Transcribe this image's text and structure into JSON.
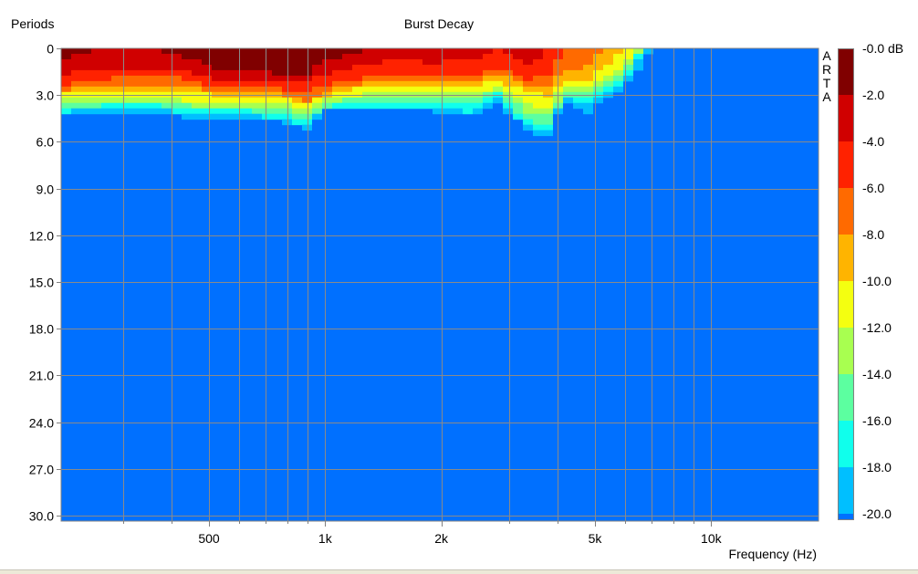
{
  "chart_data": {
    "type": "heatmap",
    "title": "Burst Decay",
    "ylabel": "Periods",
    "xlabel": "Frequency (Hz)",
    "watermark": "ARTA",
    "x_scale": "log",
    "xlim": [
      207,
      19000
    ],
    "ylim": [
      0,
      30.4
    ],
    "y_ticks": [
      0,
      3,
      6,
      9,
      12,
      15,
      18,
      21,
      24,
      27,
      30
    ],
    "y_tick_labels": [
      "0",
      "3.0",
      "6.0",
      "9.0",
      "12.0",
      "15.0",
      "18.0",
      "21.0",
      "24.0",
      "27.0",
      "30.0"
    ],
    "x_ticks": [
      500,
      1000,
      2000,
      5000,
      10000
    ],
    "x_tick_labels": [
      "500",
      "1k",
      "2k",
      "5k",
      "10k"
    ],
    "x_grid": [
      300,
      400,
      500,
      600,
      700,
      800,
      900,
      1000,
      2000,
      3000,
      4000,
      5000,
      6000,
      7000,
      8000,
      9000,
      10000
    ],
    "grid": true,
    "colorbar": {
      "labels": [
        "-0.0 dB",
        "-2.0",
        "-4.0",
        "-6.0",
        "-8.0",
        "-10.0",
        "-12.0",
        "-14.0",
        "-16.0",
        "-18.0",
        "-20.0"
      ],
      "band_colors": [
        "#800000",
        "#D00000",
        "#FF2200",
        "#FF6A00",
        "#FFB400",
        "#F4FF10",
        "#A8FF50",
        "#5CFFA0",
        "#10FFEC",
        "#00BFFF"
      ],
      "floor_color": "#0070FF"
    },
    "decay": [
      {
        "f": 205,
        "b": [
          0.7,
          1.65,
          2.35,
          2.7,
          2.95,
          3.3,
          3.6,
          3.9,
          4.1,
          4.4
        ]
      },
      {
        "f": 250,
        "b": [
          0.05,
          1.4,
          2.05,
          2.35,
          2.7,
          3.0,
          3.4,
          3.7,
          3.9,
          4.1
        ]
      },
      {
        "f": 340,
        "b": [
          0.02,
          1.4,
          1.75,
          2.35,
          2.65,
          3.0,
          3.35,
          3.6,
          3.85,
          4.1
        ]
      },
      {
        "f": 425,
        "b": [
          0.45,
          1.27,
          1.95,
          2.45,
          2.7,
          3.3,
          3.6,
          3.8,
          4.1,
          4.4
        ]
      },
      {
        "f": 530,
        "b": [
          1.37,
          2.05,
          2.45,
          2.8,
          3.1,
          3.5,
          3.8,
          4.0,
          4.3,
          4.7
        ]
      },
      {
        "f": 625,
        "b": [
          1.37,
          2.05,
          2.35,
          2.8,
          3.1,
          3.4,
          3.7,
          4.0,
          4.3,
          4.5
        ]
      },
      {
        "f": 780,
        "b": [
          1.66,
          2.2,
          2.65,
          3.0,
          3.2,
          3.6,
          3.9,
          4.3,
          4.5,
          4.7
        ]
      },
      {
        "f": 890,
        "b": [
          1.66,
          2.15,
          2.8,
          3.4,
          3.7,
          4.0,
          4.4,
          4.7,
          5.0,
          5.3
        ]
      },
      {
        "f": 1000,
        "b": [
          0.88,
          1.66,
          2.35,
          2.7,
          3.0,
          3.3,
          3.5,
          3.7,
          3.9,
          4.0
        ]
      },
      {
        "f": 1270,
        "b": [
          0.02,
          0.98,
          1.85,
          2.2,
          2.5,
          2.9,
          3.1,
          3.4,
          3.7,
          3.9
        ]
      },
      {
        "f": 1620,
        "b": [
          0.01,
          0.7,
          1.85,
          2.15,
          2.35,
          2.8,
          3.1,
          3.4,
          3.7,
          3.9
        ]
      },
      {
        "f": 1860,
        "b": [
          0.01,
          0.98,
          1.66,
          2.05,
          2.45,
          2.8,
          3.2,
          3.6,
          3.8,
          4.0
        ]
      },
      {
        "f": 2440,
        "b": [
          0.01,
          0.7,
          1.66,
          2.2,
          2.5,
          2.9,
          3.2,
          3.6,
          4.1,
          4.4
        ]
      },
      {
        "f": 2790,
        "b": [
          0.0,
          0.01,
          1.27,
          1.66,
          2.05,
          2.45,
          2.65,
          2.9,
          3.2,
          3.5
        ]
      },
      {
        "f": 3400,
        "b": [
          0.01,
          0.98,
          2.05,
          2.45,
          2.9,
          3.7,
          4.2,
          4.8,
          5.1,
          5.4
        ]
      },
      {
        "f": 3770,
        "b": [
          0.0,
          0.01,
          1.66,
          2.35,
          3.0,
          3.8,
          4.4,
          5.0,
          5.4,
          5.66
        ]
      },
      {
        "f": 4180,
        "b": [
          0.0,
          0.0,
          0.01,
          1.37,
          1.95,
          2.35,
          2.65,
          2.9,
          3.1,
          3.2
        ]
      },
      {
        "f": 4690,
        "b": [
          0.0,
          0.0,
          0.01,
          1.37,
          2.15,
          2.65,
          2.9,
          3.4,
          3.8,
          4.4
        ]
      },
      {
        "f": 5240,
        "b": [
          0.0,
          0.0,
          0.0,
          0.01,
          1.37,
          1.85,
          2.2,
          2.7,
          3.1,
          3.4
        ]
      },
      {
        "f": 5860,
        "b": [
          0.0,
          0.0,
          0.0,
          0.0,
          0.0,
          1.1,
          1.7,
          2.1,
          2.4,
          2.7
        ]
      },
      {
        "f": 6560,
        "b": [
          0.0,
          0.0,
          0.0,
          0.0,
          0.0,
          0.0,
          0.0,
          0.01,
          0.4,
          1.2
        ]
      },
      {
        "f": 6920,
        "b": [
          0.0,
          0.0,
          0.0,
          0.0,
          0.0,
          0.0,
          0.0,
          0.0,
          0.0,
          0.35
        ]
      },
      {
        "f": 7200,
        "b": [
          0.0,
          0.0,
          0.0,
          0.0,
          0.0,
          0.0,
          0.0,
          0.0,
          0.0,
          0.0
        ]
      }
    ]
  }
}
